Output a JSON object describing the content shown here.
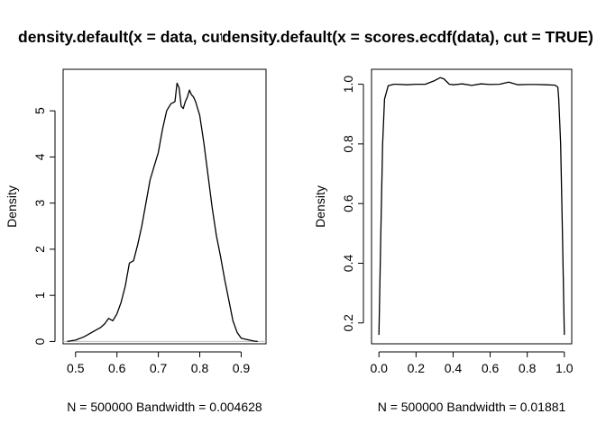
{
  "chart_data": [
    {
      "type": "line",
      "title": "density.default(x = data, cut = TRUE)",
      "xlabel": "N = 500000   Bandwidth = 0.004628",
      "ylabel": "Density",
      "xlim": [
        0.47,
        0.96
      ],
      "ylim": [
        -0.05,
        5.9
      ],
      "xticks": [
        0.5,
        0.6,
        0.7,
        0.8,
        0.9
      ],
      "xtick_labels": [
        "0.5",
        "0.6",
        "0.7",
        "0.8",
        "0.9"
      ],
      "yticks": [
        0,
        1,
        2,
        3,
        4,
        5
      ],
      "ytick_labels": [
        "0",
        "1",
        "2",
        "3",
        "4",
        "5"
      ],
      "zero_line": true,
      "series": [
        {
          "x": [
            0.48,
            0.5,
            0.52,
            0.54,
            0.55,
            0.56,
            0.57,
            0.58,
            0.59,
            0.6,
            0.61,
            0.62,
            0.63,
            0.64,
            0.65,
            0.66,
            0.67,
            0.68,
            0.69,
            0.7,
            0.71,
            0.72,
            0.73,
            0.74,
            0.745,
            0.75,
            0.755,
            0.76,
            0.765,
            0.77,
            0.775,
            0.78,
            0.785,
            0.79,
            0.8,
            0.81,
            0.82,
            0.83,
            0.84,
            0.85,
            0.86,
            0.87,
            0.88,
            0.89,
            0.9,
            0.91,
            0.92,
            0.93,
            0.94
          ],
          "y": [
            0.0,
            0.03,
            0.1,
            0.2,
            0.25,
            0.3,
            0.38,
            0.5,
            0.45,
            0.6,
            0.85,
            1.2,
            1.7,
            1.75,
            2.1,
            2.5,
            3.0,
            3.5,
            3.8,
            4.1,
            4.6,
            5.0,
            5.15,
            5.2,
            5.6,
            5.5,
            5.1,
            5.05,
            5.2,
            5.3,
            5.45,
            5.35,
            5.3,
            5.2,
            4.9,
            4.3,
            3.6,
            2.9,
            2.3,
            1.85,
            1.35,
            0.9,
            0.45,
            0.2,
            0.07,
            0.05,
            0.03,
            0.01,
            0.0
          ]
        }
      ]
    },
    {
      "type": "line",
      "title": "density.default(x = scores.ecdf(data), cut = TRUE)",
      "xlabel": "N = 500000   Bandwidth = 0.01881",
      "ylabel": "Density",
      "xlim": [
        -0.04,
        1.04
      ],
      "ylim": [
        0.13,
        1.05
      ],
      "xticks": [
        0.0,
        0.2,
        0.4,
        0.6,
        0.8,
        1.0
      ],
      "xtick_labels": [
        "0.0",
        "0.2",
        "0.4",
        "0.6",
        "0.8",
        "1.0"
      ],
      "yticks": [
        0.2,
        0.4,
        0.6,
        0.8,
        1.0
      ],
      "ytick_labels": [
        "0.2",
        "0.4",
        "0.6",
        "0.8",
        "1.0"
      ],
      "zero_line": false,
      "series": [
        {
          "x": [
            0.0,
            0.01,
            0.02,
            0.03,
            0.05,
            0.08,
            0.1,
            0.15,
            0.2,
            0.25,
            0.3,
            0.33,
            0.35,
            0.38,
            0.4,
            0.45,
            0.5,
            0.55,
            0.6,
            0.65,
            0.7,
            0.75,
            0.8,
            0.85,
            0.9,
            0.95,
            0.965,
            0.97,
            0.98,
            0.99,
            1.0
          ],
          "y": [
            0.16,
            0.5,
            0.8,
            0.95,
            0.995,
            1.0,
            1.0,
            0.998,
            1.0,
            1.0,
            1.012,
            1.022,
            1.018,
            1.0,
            0.998,
            1.001,
            0.996,
            1.001,
            0.999,
            1.0,
            1.007,
            0.998,
            0.999,
            0.999,
            0.998,
            0.997,
            0.99,
            0.95,
            0.8,
            0.5,
            0.16
          ]
        }
      ]
    }
  ]
}
